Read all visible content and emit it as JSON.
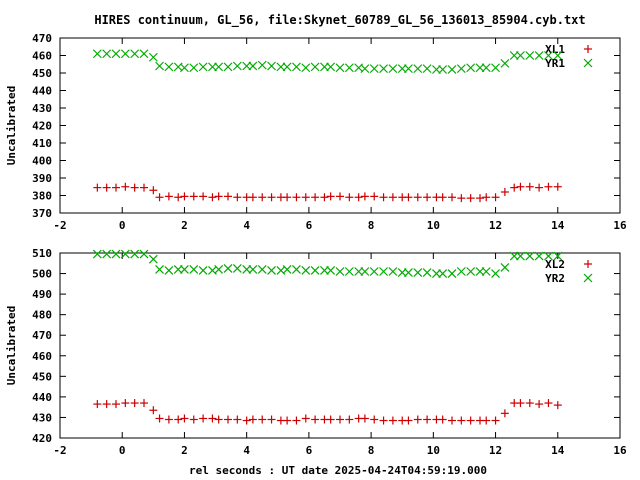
{
  "chart_data": {
    "type": "scatter",
    "title": "HIRES continuum, GL_56, file:Skynet_60789_GL_56_136013_85904.cyb.txt",
    "xlabel": "rel seconds : UT date 2025-04-24T04:59:19.000",
    "xlim": [
      -2,
      16
    ],
    "xticks": [
      -2,
      0,
      2,
      4,
      6,
      8,
      10,
      12,
      14,
      16
    ],
    "x": [
      -0.8,
      -0.5,
      -0.2,
      0.1,
      0.4,
      0.7,
      1.0,
      1.2,
      1.5,
      1.8,
      2.0,
      2.3,
      2.6,
      2.9,
      3.1,
      3.4,
      3.7,
      4.0,
      4.2,
      4.5,
      4.8,
      5.1,
      5.3,
      5.6,
      5.9,
      6.2,
      6.5,
      6.7,
      7.0,
      7.3,
      7.6,
      7.8,
      8.1,
      8.4,
      8.7,
      9.0,
      9.2,
      9.5,
      9.8,
      10.1,
      10.3,
      10.6,
      10.9,
      11.2,
      11.5,
      11.7,
      12.0,
      12.3,
      12.6,
      12.8,
      13.1,
      13.4,
      13.7,
      14.0
    ],
    "panels": [
      {
        "ylabel": "Uncalibrated",
        "ylim": [
          370,
          470
        ],
        "yticks": [
          370,
          380,
          390,
          400,
          410,
          420,
          430,
          440,
          450,
          460,
          470
        ],
        "series": [
          {
            "name": "XL1",
            "marker": "plus",
            "color": "#cc0000",
            "values": [
              384.5,
              384.5,
              384.5,
              385,
              384.5,
              384.5,
              383,
              379,
              379.5,
              379,
              379.5,
              379.5,
              379.5,
              379,
              379.5,
              379.5,
              379,
              379,
              379,
              379,
              379,
              379,
              379,
              379,
              379,
              379,
              379,
              379.5,
              379.5,
              379,
              379,
              379.5,
              379.5,
              379,
              379,
              379,
              379,
              379,
              379,
              379,
              379,
              379,
              378.5,
              378.5,
              378.5,
              379,
              379,
              382,
              384.5,
              385,
              385,
              384.5,
              385,
              385
            ]
          },
          {
            "name": "YR1",
            "marker": "cross",
            "color": "#00aa00",
            "values": [
              461,
              461,
              461,
              461,
              461,
              461,
              459,
              454,
              453.5,
              453.5,
              453,
              453,
              453.5,
              453.5,
              453.5,
              453.5,
              454,
              454,
              454,
              454.5,
              454,
              453.5,
              453.5,
              453.5,
              453,
              453.5,
              453.5,
              453.5,
              453,
              453,
              453,
              452.5,
              452.5,
              452.5,
              452.5,
              452.5,
              452.5,
              452.5,
              452.5,
              452,
              452,
              452,
              452.5,
              453,
              453,
              453,
              453,
              455.5,
              460,
              460,
              460,
              460,
              460,
              460
            ]
          }
        ]
      },
      {
        "ylabel": "Uncalibrated",
        "ylim": [
          420,
          510
        ],
        "yticks": [
          420,
          430,
          440,
          450,
          460,
          470,
          480,
          490,
          500,
          510
        ],
        "series": [
          {
            "name": "XL2",
            "marker": "plus",
            "color": "#cc0000",
            "values": [
              436.5,
              436.5,
              436.5,
              437,
              437,
              437,
              433.5,
              429.5,
              429,
              429,
              429.5,
              429,
              429.5,
              429.5,
              429,
              429,
              429,
              428.5,
              429,
              429,
              429,
              428.5,
              428.5,
              428.5,
              429.5,
              429,
              429,
              429,
              429,
              429,
              429.5,
              429.5,
              429,
              428.5,
              428.5,
              428.5,
              428.5,
              429,
              429,
              429,
              429,
              428.5,
              428.5,
              428.5,
              428.5,
              428.5,
              428.5,
              432,
              437,
              437,
              437,
              436.5,
              437,
              436
            ]
          },
          {
            "name": "YR2",
            "marker": "cross",
            "color": "#00aa00",
            "values": [
              509.5,
              509.5,
              509.5,
              509.5,
              509.5,
              509.5,
              507,
              502,
              501.5,
              502,
              502,
              502,
              501.5,
              501.5,
              502,
              502.5,
              502.5,
              502,
              502,
              502,
              501.5,
              501.5,
              502,
              502,
              501.5,
              501.5,
              501.5,
              501.5,
              501,
              501,
              501,
              501,
              501,
              501,
              501,
              500.5,
              500.5,
              500.5,
              500.5,
              500,
              500,
              500,
              501,
              501,
              501,
              501,
              500,
              503,
              508.5,
              508.5,
              508.5,
              508.5,
              508.5,
              508.5
            ]
          }
        ]
      }
    ],
    "legend_position": "top-right",
    "grid": false
  }
}
